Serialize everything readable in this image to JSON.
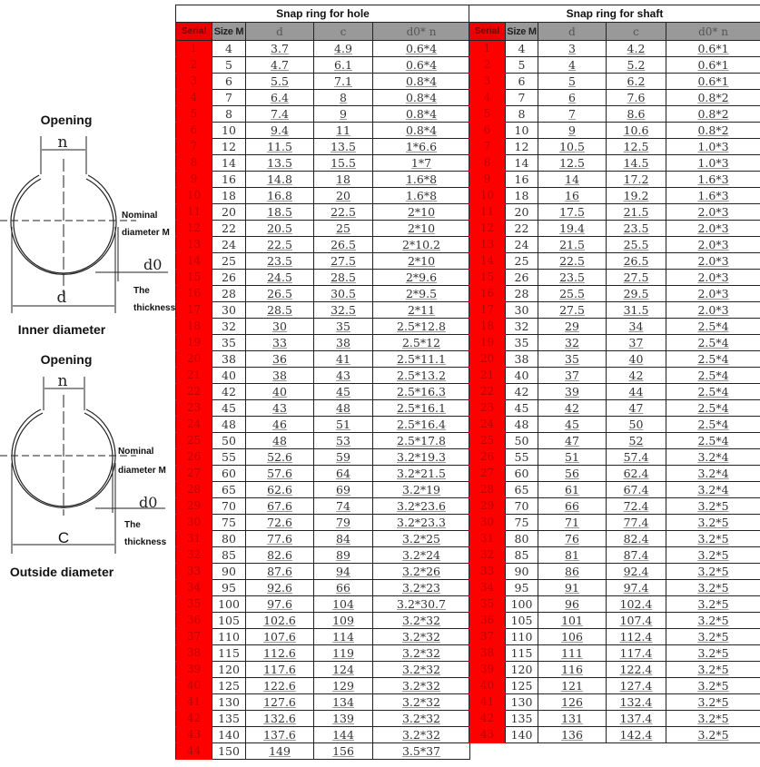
{
  "diagram": {
    "inner": {
      "opening": "Opening",
      "n": "n",
      "nominal_1": "Nominal",
      "nominal_2": "diameter M",
      "d0": "d0",
      "thickness_1": "The",
      "thickness_2": "thickness",
      "dim": "d",
      "caption": "Inner diameter"
    },
    "outer": {
      "opening": "Opening",
      "n": "n",
      "nominal_1": "Nominal",
      "nominal_2": "diameter M",
      "d0": "d0",
      "thickness_1": "The",
      "thickness_2": "thickness",
      "dim": "C",
      "caption": "Outside diameter"
    }
  },
  "headers": [
    "Serial",
    "Size M",
    "d",
    "c",
    "d0* n"
  ],
  "hole": {
    "title": "Snap ring for hole",
    "rows": [
      [
        "1",
        "4",
        "3.7",
        "4.9",
        "0.6*4"
      ],
      [
        "2",
        "5",
        "4.7",
        "6.1",
        "0.6*4"
      ],
      [
        "3",
        "6",
        "5.5",
        "7.1",
        "0.8*4"
      ],
      [
        "4",
        "7",
        "6.4",
        "8",
        "0.8*4"
      ],
      [
        "5",
        "8",
        "7.4",
        "9",
        "0.8*4"
      ],
      [
        "6",
        "10",
        "9.4",
        "11",
        "0.8*4"
      ],
      [
        "7",
        "12",
        "11.5",
        "13.5",
        "1*6.6"
      ],
      [
        "8",
        "14",
        "13.5",
        "15.5",
        "1*7"
      ],
      [
        "9",
        "16",
        "14.8",
        "18",
        "1.6*8"
      ],
      [
        "10",
        "18",
        "16.8",
        "20",
        "1.6*8"
      ],
      [
        "11",
        "20",
        "18.5",
        "22.5",
        "2*10"
      ],
      [
        "12",
        "22",
        "20.5",
        "25",
        "2*10"
      ],
      [
        "13",
        "24",
        "22.5",
        "26.5",
        "2*10.2"
      ],
      [
        "14",
        "25",
        "23.5",
        "27.5",
        "2*10"
      ],
      [
        "15",
        "26",
        "24.5",
        "28.5",
        "2*9.6"
      ],
      [
        "16",
        "28",
        "26.5",
        "30.5",
        "2*9.5"
      ],
      [
        "17",
        "30",
        "28.5",
        "32.5",
        "2*11"
      ],
      [
        "18",
        "32",
        "30",
        "35",
        "2.5*12.8"
      ],
      [
        "19",
        "35",
        "33",
        "38",
        "2.5*12"
      ],
      [
        "20",
        "38",
        "36",
        "41",
        "2.5*11.1"
      ],
      [
        "21",
        "40",
        "38",
        "43",
        "2.5*13.2"
      ],
      [
        "22",
        "42",
        "40",
        "45",
        "2.5*16.3"
      ],
      [
        "23",
        "45",
        "43",
        "48",
        "2.5*16.1"
      ],
      [
        "24",
        "48",
        "46",
        "51",
        "2.5*16.4"
      ],
      [
        "25",
        "50",
        "48",
        "53",
        "2.5*17.8"
      ],
      [
        "26",
        "55",
        "52.6",
        "59",
        "3.2*19.3"
      ],
      [
        "27",
        "60",
        "57.6",
        "64",
        "3.2*21.5"
      ],
      [
        "28",
        "65",
        "62.6",
        "69",
        "3.2*19"
      ],
      [
        "29",
        "70",
        "67.6",
        "74",
        "3.2*23.6"
      ],
      [
        "30",
        "75",
        "72.6",
        "79",
        "3.2*23.3"
      ],
      [
        "31",
        "80",
        "77.6",
        "84",
        "3.2*25"
      ],
      [
        "32",
        "85",
        "82.6",
        "89",
        "3.2*24"
      ],
      [
        "33",
        "90",
        "87.6",
        "94",
        "3.2*26"
      ],
      [
        "34",
        "95",
        "92.6",
        "66",
        "3.2*23"
      ],
      [
        "35",
        "100",
        "97.6",
        "104",
        "3.2*30.7"
      ],
      [
        "36",
        "105",
        "102.6",
        "109",
        "3.2*32"
      ],
      [
        "37",
        "110",
        "107.6",
        "114",
        "3.2*32"
      ],
      [
        "38",
        "115",
        "112.6",
        "119",
        "3.2*32"
      ],
      [
        "39",
        "120",
        "117.6",
        "124",
        "3.2*32"
      ],
      [
        "40",
        "125",
        "122.6",
        "129",
        "3.2*32"
      ],
      [
        "41",
        "130",
        "127.6",
        "134",
        "3.2*32"
      ],
      [
        "42",
        "135",
        "132.6",
        "139",
        "3.2*32"
      ],
      [
        "43",
        "140",
        "137.6",
        "144",
        "3.2*32"
      ],
      [
        "44",
        "150",
        "149",
        "156",
        "3.5*37"
      ]
    ]
  },
  "shaft": {
    "title": "Snap ring for shaft",
    "rows": [
      [
        "1",
        "4",
        "3",
        "4.2",
        "0.6*1"
      ],
      [
        "2",
        "5",
        "4",
        "5.2",
        "0.6*1"
      ],
      [
        "3",
        "6",
        "5",
        "6.2",
        "0.6*1"
      ],
      [
        "4",
        "7",
        "6",
        "7.6",
        "0.8*2"
      ],
      [
        "5",
        "8",
        "7",
        "8.6",
        "0.8*2"
      ],
      [
        "6",
        "10",
        "9",
        "10.6",
        "0.8*2"
      ],
      [
        "7",
        "12",
        "10.5",
        "12.5",
        "1.0*3"
      ],
      [
        "8",
        "14",
        "12.5",
        "14.5",
        "1.0*3"
      ],
      [
        "9",
        "16",
        "14",
        "17.2",
        "1.6*3"
      ],
      [
        "10",
        "18",
        "16",
        "19.2",
        "1.6*3"
      ],
      [
        "11",
        "20",
        "17.5",
        "21.5",
        "2.0*3"
      ],
      [
        "12",
        "22",
        "19.4",
        "23.5",
        "2.0*3"
      ],
      [
        "13",
        "24",
        "21.5",
        "25.5",
        "2.0*3"
      ],
      [
        "14",
        "25",
        "22.5",
        "26.5",
        "2.0*3"
      ],
      [
        "15",
        "26",
        "23.5",
        "27.5",
        "2.0*3"
      ],
      [
        "16",
        "28",
        "25.5",
        "29.5",
        "2.0*3"
      ],
      [
        "17",
        "30",
        "27.5",
        "31.5",
        "2.0*3"
      ],
      [
        "18",
        "32",
        "29",
        "34",
        "2.5*4"
      ],
      [
        "19",
        "35",
        "32",
        "37",
        "2.5*4"
      ],
      [
        "20",
        "38",
        "35",
        "40",
        "2.5*4"
      ],
      [
        "21",
        "40",
        "37",
        "42",
        "2.5*4"
      ],
      [
        "22",
        "42",
        "39",
        "44",
        "2.5*4"
      ],
      [
        "23",
        "45",
        "42",
        "47",
        "2.5*4"
      ],
      [
        "24",
        "48",
        "45",
        "50",
        "2.5*4"
      ],
      [
        "25",
        "50",
        "47",
        "52",
        "2.5*4"
      ],
      [
        "26",
        "55",
        "51",
        "57.4",
        "3.2*4"
      ],
      [
        "27",
        "60",
        "56",
        "62.4",
        "3.2*4"
      ],
      [
        "28",
        "65",
        "61",
        "67.4",
        "3.2*4"
      ],
      [
        "29",
        "70",
        "66",
        "72.4",
        "3.2*5"
      ],
      [
        "30",
        "75",
        "71",
        "77.4",
        "3.2*5"
      ],
      [
        "31",
        "80",
        "76",
        "82.4",
        "3.2*5"
      ],
      [
        "32",
        "85",
        "81",
        "87.4",
        "3.2*5"
      ],
      [
        "33",
        "90",
        "86",
        "92.4",
        "3.2*5"
      ],
      [
        "34",
        "95",
        "91",
        "97.4",
        "3.2*5"
      ],
      [
        "35",
        "100",
        "96",
        "102.4",
        "3.2*5"
      ],
      [
        "36",
        "105",
        "101",
        "107.4",
        "3.2*5"
      ],
      [
        "37",
        "110",
        "106",
        "112.4",
        "3.2*5"
      ],
      [
        "38",
        "115",
        "111",
        "117.4",
        "3.2*5"
      ],
      [
        "39",
        "120",
        "116",
        "122.4",
        "3.2*5"
      ],
      [
        "40",
        "125",
        "121",
        "127.4",
        "3.2*5"
      ],
      [
        "41",
        "130",
        "126",
        "132.4",
        "3.2*5"
      ],
      [
        "42",
        "135",
        "131",
        "137.4",
        "3.2*5"
      ],
      [
        "43",
        "140",
        "136",
        "142.4",
        "3.2*5"
      ]
    ]
  }
}
